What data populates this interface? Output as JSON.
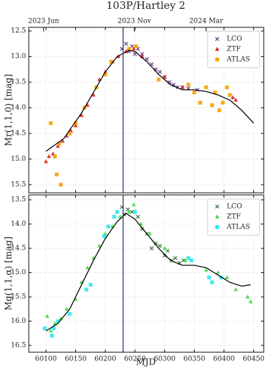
{
  "chart_data": [
    {
      "type": "scatter",
      "title": "103P/Hartley 2",
      "ylabel": "Mr(1,1,0) [mag]",
      "y_inverted": true,
      "grid": true,
      "legend": "upper right",
      "xlim": [
        60071,
        60467
      ],
      "ylim": [
        12.43,
        15.66
      ],
      "xticks": [
        60100,
        60150,
        60200,
        60250,
        60300,
        60350,
        60400,
        60450
      ],
      "yticks": [
        12.5,
        {
          "value": 13.0,
          "label": "13.0"
        },
        13.5,
        {
          "value": 14.0,
          "label": "14.0"
        },
        14.5,
        {
          "value": 15.0,
          "label": "15.0"
        },
        15.5
      ],
      "x2ticks": [
        {
          "value": 60096,
          "label": "2023 Jun"
        },
        {
          "value": 60249,
          "label": "2023 Nov"
        },
        {
          "value": 60370,
          "label": "2024 Mar"
        }
      ],
      "vline": 60230,
      "vline_color": "#2a2a7a",
      "curve": {
        "color": "#000000",
        "x": [
          60100,
          60130,
          60160,
          60180,
          60200,
          60220,
          60240,
          60250,
          60270,
          60290,
          60310,
          60330,
          60350,
          60370,
          60390,
          60410,
          60430,
          60450
        ],
        "y": [
          14.85,
          14.6,
          14.1,
          13.7,
          13.3,
          13.0,
          12.88,
          12.9,
          13.1,
          13.35,
          13.55,
          13.65,
          13.65,
          13.68,
          13.75,
          13.85,
          14.05,
          14.3
        ]
      },
      "series": [
        {
          "name": "LCO",
          "color": "#5b1f7a",
          "marker": "x",
          "x": [
            60228,
            60235,
            60240,
            60245,
            60250,
            60255,
            60262,
            60270,
            60278,
            60285,
            60292,
            60300,
            60308,
            60315,
            60322,
            60330,
            60340,
            60355
          ],
          "values": [
            12.85,
            12.75,
            12.9,
            12.8,
            12.95,
            12.85,
            12.95,
            13.05,
            13.15,
            13.25,
            13.3,
            13.4,
            13.5,
            13.55,
            13.6,
            13.6,
            13.62,
            13.65
          ]
        },
        {
          "name": "ZTF",
          "color": "#e02020",
          "marker": "triangle",
          "x": [
            60100,
            60105,
            60112,
            60120,
            60128,
            60135,
            60142,
            60150,
            60160,
            60170,
            60180,
            60190,
            60200,
            60212,
            60222,
            60235,
            60248,
            60262,
            60300,
            60330,
            60415,
            60420
          ],
          "values": [
            15.05,
            14.95,
            14.9,
            14.75,
            14.65,
            14.55,
            14.45,
            14.35,
            14.15,
            13.95,
            13.75,
            13.45,
            13.3,
            13.1,
            13.0,
            12.9,
            12.85,
            13.0,
            13.4,
            13.6,
            13.8,
            13.85
          ]
        },
        {
          "name": "ATLAS",
          "color": "#f5a000",
          "marker": "square",
          "x": [
            60108,
            60115,
            60118,
            60122,
            60125,
            60140,
            60150,
            60165,
            60185,
            60200,
            60210,
            60240,
            60252,
            60290,
            60340,
            60350,
            60360,
            60370,
            60380,
            60385,
            60392,
            60398,
            60405,
            60410
          ],
          "values": [
            14.3,
            14.95,
            15.3,
            14.7,
            15.5,
            14.5,
            14.3,
            14.0,
            13.6,
            13.35,
            13.1,
            12.85,
            12.8,
            13.45,
            13.55,
            13.7,
            13.9,
            13.6,
            13.95,
            13.7,
            14.05,
            13.9,
            13.6,
            13.75
          ]
        }
      ]
    },
    {
      "type": "scatter",
      "xlabel": "MJD",
      "ylabel": "Mg(1,1,α) [mag]",
      "y_inverted": true,
      "grid": true,
      "legend": "upper right",
      "xlim": [
        60071,
        60467
      ],
      "ylim": [
        13.4,
        16.64
      ],
      "xticks": [
        60100,
        60150,
        60200,
        60250,
        60300,
        60350,
        60400,
        60450
      ],
      "yticks": [
        13.5,
        {
          "value": 14.0,
          "label": "14.0"
        },
        14.5,
        {
          "value": 15.0,
          "label": "15.0"
        },
        15.5,
        {
          "value": 16.0,
          "label": "16.0"
        },
        16.5
      ],
      "vline": 60230,
      "vline_color": "#2a2a7a",
      "curve": {
        "color": "#000000",
        "x": [
          60100,
          60120,
          60140,
          60160,
          60180,
          60200,
          60220,
          60235,
          60250,
          60270,
          60290,
          60310,
          60330,
          60350,
          60370,
          60390,
          60410,
          60430,
          60445
        ],
        "y": [
          16.2,
          16.05,
          15.75,
          15.25,
          14.75,
          14.3,
          13.95,
          13.78,
          13.9,
          14.2,
          14.5,
          14.75,
          14.85,
          14.85,
          14.9,
          15.05,
          15.2,
          15.28,
          15.25
        ]
      },
      "series": [
        {
          "name": "LCO",
          "color": "#1d5e1d",
          "marker": "x",
          "x": [
            60228,
            60232,
            60238,
            60245,
            60255,
            60262,
            60270,
            60278,
            60285,
            60292,
            60300,
            60305,
            60312,
            60318,
            60325,
            60332
          ],
          "values": [
            13.65,
            13.8,
            13.7,
            13.75,
            13.85,
            14.1,
            14.2,
            14.5,
            14.4,
            14.45,
            14.65,
            14.55,
            14.75,
            14.7,
            14.8,
            14.75
          ]
        },
        {
          "name": "ZTF",
          "color": "#3fdc3f",
          "marker": "triangle",
          "x": [
            60102,
            60108,
            60115,
            60125,
            60135,
            60150,
            60160,
            60170,
            60180,
            60190,
            60200,
            60212,
            60225,
            60240,
            60248,
            60260,
            60275,
            60300,
            60335,
            60370,
            60390,
            60405,
            60420,
            60440,
            60445
          ],
          "values": [
            15.9,
            16.2,
            16.05,
            15.95,
            15.75,
            15.55,
            15.2,
            14.9,
            14.7,
            14.45,
            14.2,
            14.05,
            13.85,
            13.75,
            13.6,
            14.0,
            14.2,
            14.5,
            14.75,
            14.95,
            15.0,
            15.1,
            15.35,
            15.5,
            15.6
          ]
        },
        {
          "name": "ATLAS",
          "color": "#2ee6f0",
          "marker": "square",
          "x": [
            60098,
            60110,
            60113,
            60120,
            60140,
            60168,
            60175,
            60198,
            60205,
            60215,
            60220,
            60250,
            60340,
            60345,
            60375,
            60380,
            60395
          ],
          "values": [
            16.15,
            16.3,
            16.15,
            16.0,
            15.85,
            15.35,
            15.25,
            14.25,
            14.05,
            13.85,
            13.75,
            13.75,
            14.7,
            14.75,
            15.1,
            15.2,
            15.1
          ]
        }
      ]
    }
  ]
}
